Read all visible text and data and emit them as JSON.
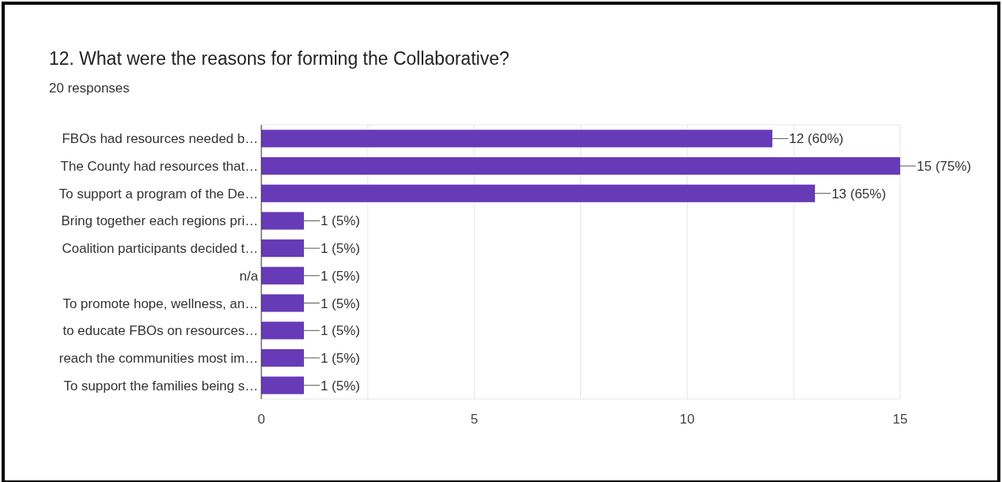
{
  "chart_data": {
    "type": "bar",
    "orientation": "horizontal",
    "title": "12. What were the reasons for forming the Collaborative?",
    "subtitle": "20 responses",
    "categories": [
      "FBOs had resources needed b…",
      "The County had resources that…",
      "To support a program of the De…",
      "Bring together each regions pri…",
      "Coalition participants decided t…",
      "n/a",
      "To promote hope, wellness, an…",
      "to educate FBOs on resources…",
      "reach the communities most im…",
      "To support the families being s…"
    ],
    "values": [
      12,
      15,
      13,
      1,
      1,
      1,
      1,
      1,
      1,
      1
    ],
    "value_labels": [
      "12 (60%)",
      "15 (75%)",
      "13 (65%)",
      "1 (5%)",
      "1 (5%)",
      "1 (5%)",
      "1 (5%)",
      "1 (5%)",
      "1 (5%)",
      "1 (5%)"
    ],
    "color": "#673ab7",
    "xlim": [
      0,
      15
    ],
    "xticks": [
      0,
      {
        "value": 2.5,
        "label": null
      },
      5,
      {
        "value": 7.5,
        "label": null
      },
      10,
      {
        "value": 12.5,
        "label": null
      },
      15
    ],
    "grid": true
  }
}
